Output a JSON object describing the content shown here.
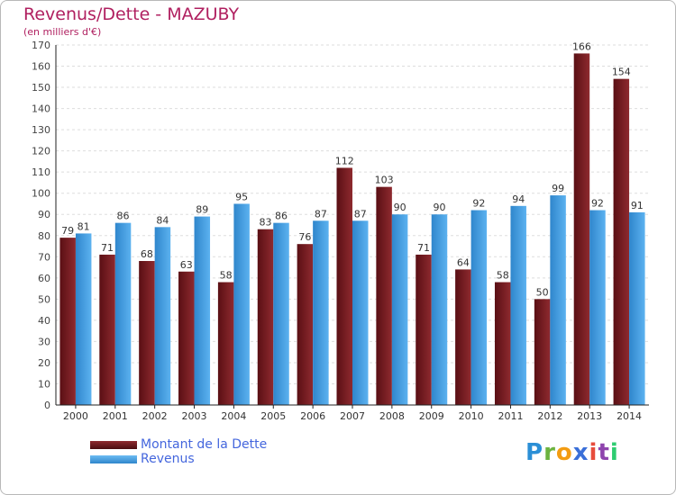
{
  "title": "Revenus/Dette - MAZUBY",
  "subtitle": "(en milliers d'€)",
  "chart_data": {
    "type": "bar",
    "title": "Revenus/Dette - MAZUBY",
    "subtitle": "(en milliers d'€)",
    "categories": [
      "2000",
      "2001",
      "2002",
      "2003",
      "2004",
      "2005",
      "2006",
      "2007",
      "2008",
      "2009",
      "2010",
      "2011",
      "2012",
      "2013",
      "2014"
    ],
    "series": [
      {
        "name": "Montant de la Dette",
        "color": "#7a1f23",
        "values": [
          79,
          71,
          68,
          63,
          58,
          83,
          76,
          112,
          103,
          71,
          64,
          58,
          50,
          166,
          154
        ]
      },
      {
        "name": "Revenus",
        "color": "#4aa3e6",
        "values": [
          81,
          86,
          84,
          89,
          95,
          86,
          87,
          87,
          90,
          90,
          92,
          94,
          99,
          92,
          91
        ]
      }
    ],
    "ylim": [
      0,
      170
    ],
    "ytick_step": 10,
    "grid": true,
    "legend_position": "bottom-left"
  },
  "logo": {
    "letters": [
      "P",
      "r",
      "o",
      "x",
      "i",
      "t",
      "i"
    ],
    "colors": [
      "#2b8fd6",
      "#6cb33f",
      "#f39c12",
      "#3a6fd8",
      "#e74c3c",
      "#8e44ad",
      "#2ecc71"
    ]
  }
}
